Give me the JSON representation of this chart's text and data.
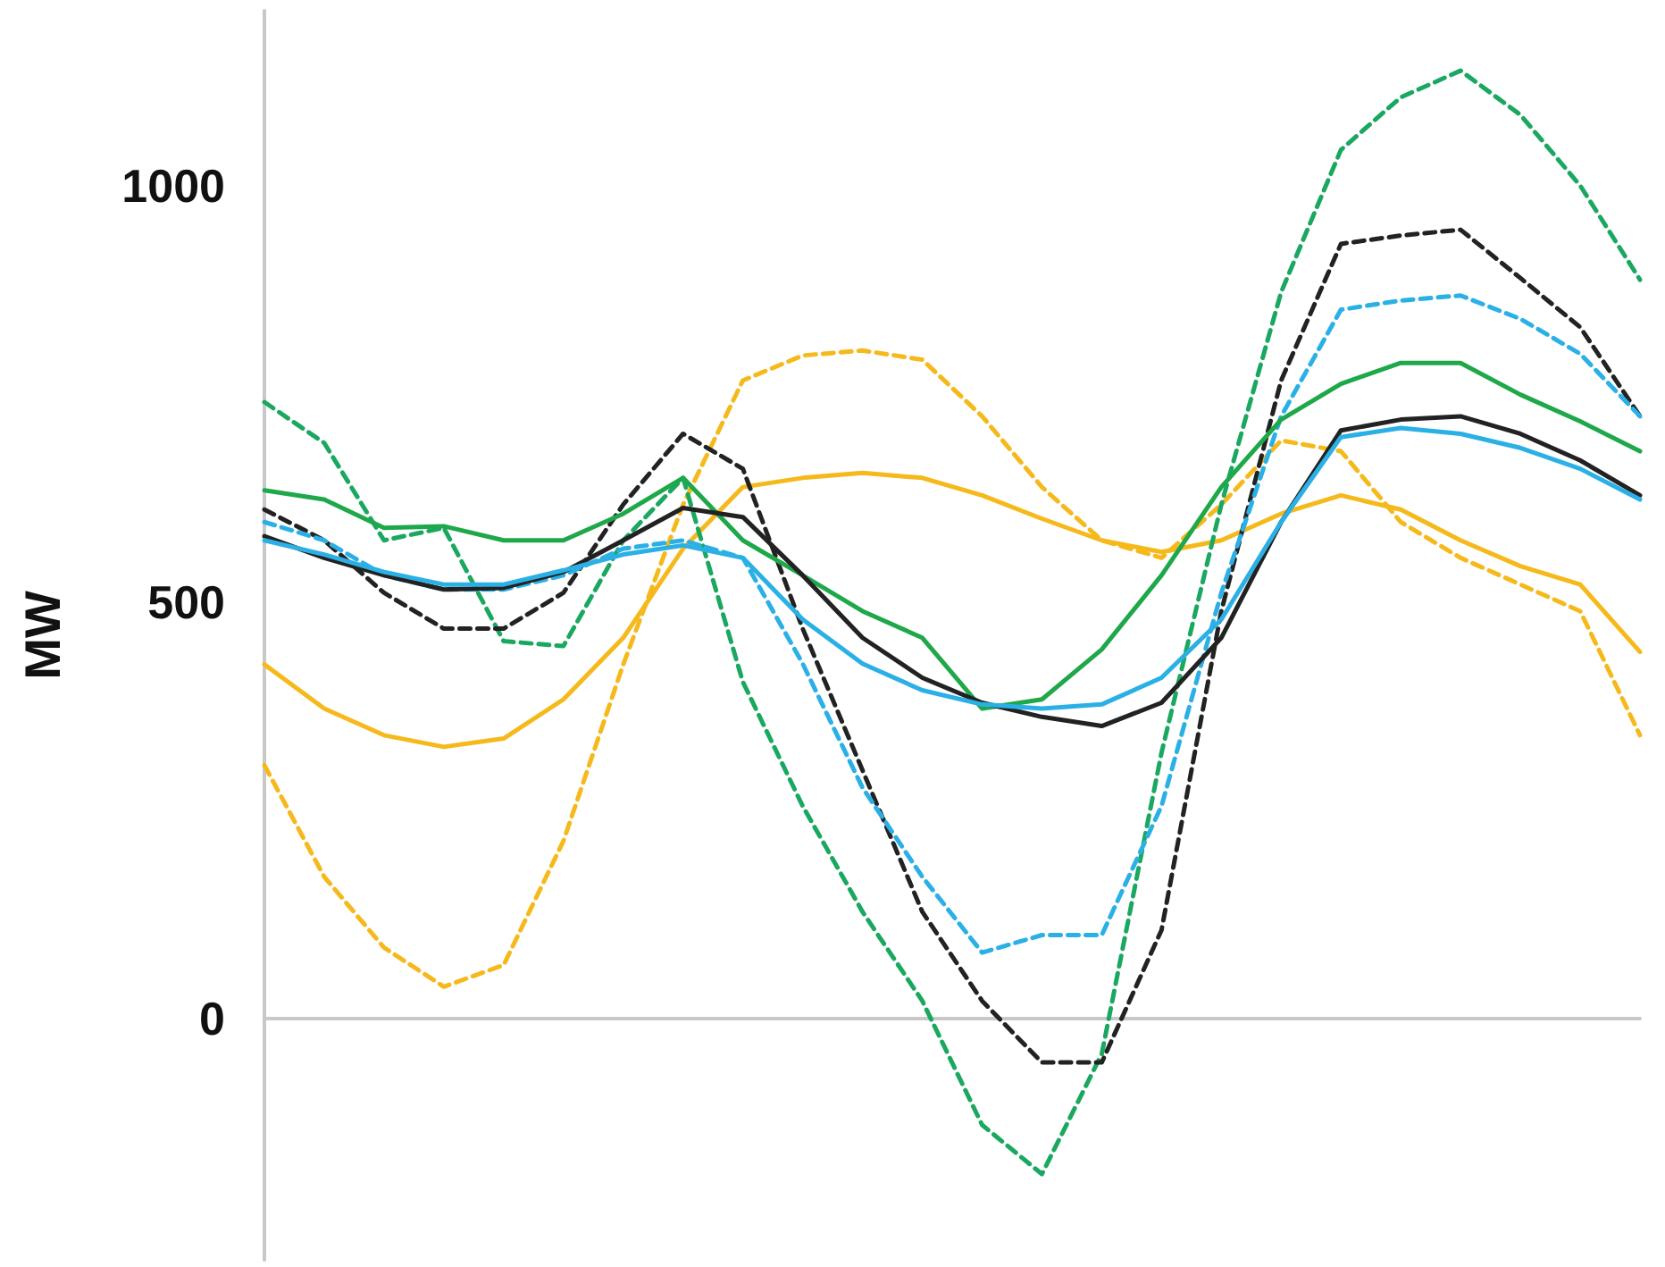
{
  "chart_data": {
    "type": "line",
    "ylabel": "MW",
    "categories": [
      null,
      null,
      null,
      null,
      null,
      null,
      null,
      null,
      null,
      null,
      null,
      null,
      null,
      null,
      null,
      null,
      null,
      null,
      null,
      null,
      null,
      null,
      null,
      null
    ],
    "ylim": [
      -290,
      1210
    ],
    "yticks": [
      0,
      500,
      1000
    ],
    "marker": "none",
    "tick_labels": "y",
    "series": [
      {
        "color": "#f5b91c",
        "line_style": "solid",
        "values": [
          425,
          372,
          340,
          326,
          336,
          383,
          457,
          564,
          638,
          649,
          655,
          649,
          628,
          600,
          574,
          560,
          574,
          606,
          628,
          611,
          574,
          543,
          521,
          440
        ]
      },
      {
        "color": "#f5b91c",
        "line_style": "dashed",
        "values": [
          304,
          170,
          85,
          38,
          64,
          213,
          425,
          617,
          766,
          796,
          802,
          791,
          723,
          638,
          574,
          553,
          617,
          694,
          681,
          596,
          553,
          521,
          489,
          340
        ]
      },
      {
        "color": "#1aa860",
        "line_style": "dashed",
        "values": [
          740,
          691,
          574,
          589,
          453,
          447,
          574,
          649,
          404,
          255,
          128,
          21,
          -128,
          -187,
          -43,
          319,
          617,
          872,
          1043,
          1106,
          1138,
          1085,
          1000,
          887
        ]
      },
      {
        "color": "#222222",
        "line_style": "dashed",
        "values": [
          611,
          574,
          511,
          468,
          468,
          511,
          617,
          702,
          660,
          468,
          298,
          128,
          21,
          -53,
          -53,
          106,
          489,
          766,
          930,
          940,
          947,
          889,
          830,
          723
        ]
      },
      {
        "color": "#2bb0e6",
        "line_style": "dashed",
        "values": [
          596,
          574,
          532,
          515,
          515,
          532,
          564,
          574,
          553,
          426,
          277,
          170,
          79,
          100,
          100,
          255,
          511,
          723,
          851,
          862,
          868,
          840,
          798,
          723
        ]
      },
      {
        "color": "#1ea84a",
        "line_style": "solid",
        "values": [
          634,
          623,
          589,
          591,
          574,
          574,
          606,
          649,
          574,
          532,
          489,
          457,
          372,
          383,
          443,
          532,
          638,
          719,
          762,
          787,
          787,
          749,
          717,
          681
        ]
      },
      {
        "color": "#222222",
        "line_style": "solid",
        "values": [
          579,
          553,
          532,
          515,
          517,
          536,
          574,
          613,
          602,
          532,
          457,
          409,
          379,
          362,
          351,
          379,
          457,
          596,
          706,
          719,
          723,
          702,
          670,
          628
        ]
      },
      {
        "color": "#2bb0e6",
        "line_style": "solid",
        "values": [
          574,
          557,
          536,
          521,
          521,
          538,
          557,
          568,
          553,
          479,
          426,
          394,
          377,
          372,
          377,
          409,
          479,
          596,
          698,
          709,
          702,
          685,
          660,
          623
        ]
      }
    ]
  }
}
